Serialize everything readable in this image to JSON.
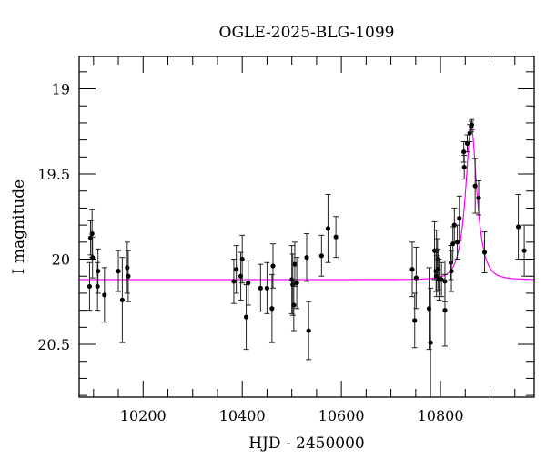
{
  "chart_data": {
    "type": "scatter",
    "title": "OGLE-2025-BLG-1099",
    "xlabel": "HJD - 2450000",
    "ylabel": "I magnitude",
    "xlim": [
      10071,
      10989
    ],
    "ylim": [
      20.81,
      18.81
    ],
    "y_inverted": true,
    "grid": false,
    "x_ticks": [
      10200,
      10400,
      10600,
      10800
    ],
    "x_tick_labels": [
      "10200",
      "10400",
      "10600",
      "10800"
    ],
    "y_ticks": [
      19,
      19.5,
      20,
      20.5
    ],
    "y_tick_labels": [
      "19",
      "19.5",
      "20",
      "20.5"
    ],
    "colors": {
      "points": "#000000",
      "model": "#ff00ff"
    },
    "model": {
      "type": "point-lens",
      "t0": 10862,
      "tE": 20,
      "u0": 0.47,
      "baseline": 20.12
    },
    "points": [
      {
        "x": 10097,
        "y": 19.85,
        "err": 0.14
      },
      {
        "x": 10094,
        "y": 19.875,
        "err": 0.1
      },
      {
        "x": 10098,
        "y": 19.99,
        "err": 0.12
      },
      {
        "x": 10092,
        "y": 20.16,
        "err": 0.14
      },
      {
        "x": 10108,
        "y": 20.16,
        "err": 0.14
      },
      {
        "x": 10109,
        "y": 20.07,
        "err": 0.13
      },
      {
        "x": 10122,
        "y": 20.21,
        "err": 0.16
      },
      {
        "x": 10150,
        "y": 20.07,
        "err": 0.12
      },
      {
        "x": 10158,
        "y": 20.24,
        "err": 0.25
      },
      {
        "x": 10168,
        "y": 20.05,
        "err": 0.15
      },
      {
        "x": 10170,
        "y": 20.1,
        "err": 0.15
      },
      {
        "x": 10383,
        "y": 20.13,
        "err": 0.13
      },
      {
        "x": 10388,
        "y": 20.06,
        "err": 0.14
      },
      {
        "x": 10397,
        "y": 20.1,
        "err": 0.14
      },
      {
        "x": 10400,
        "y": 20.0,
        "err": 0.14
      },
      {
        "x": 10408,
        "y": 20.34,
        "err": 0.19
      },
      {
        "x": 10412,
        "y": 20.14,
        "err": 0.13
      },
      {
        "x": 10437,
        "y": 20.17,
        "err": 0.14
      },
      {
        "x": 10450,
        "y": 20.17,
        "err": 0.15
      },
      {
        "x": 10460,
        "y": 20.29,
        "err": 0.2
      },
      {
        "x": 10462,
        "y": 20.04,
        "err": 0.13
      },
      {
        "x": 10500,
        "y": 20.12,
        "err": 0.2
      },
      {
        "x": 10502,
        "y": 20.15,
        "err": 0.18
      },
      {
        "x": 10504,
        "y": 20.27,
        "err": 0.15
      },
      {
        "x": 10506,
        "y": 20.03,
        "err": 0.13
      },
      {
        "x": 10510,
        "y": 20.14,
        "err": 0.15
      },
      {
        "x": 10530,
        "y": 19.99,
        "err": 0.14
      },
      {
        "x": 10534,
        "y": 20.42,
        "err": 0.17
      },
      {
        "x": 10560,
        "y": 19.98,
        "err": 0.12
      },
      {
        "x": 10573,
        "y": 19.82,
        "err": 0.2
      },
      {
        "x": 10589,
        "y": 19.87,
        "err": 0.12
      },
      {
        "x": 10743,
        "y": 20.06,
        "err": 0.16
      },
      {
        "x": 10748,
        "y": 20.36,
        "err": 0.16
      },
      {
        "x": 10751,
        "y": 20.11,
        "err": 0.18
      },
      {
        "x": 10777,
        "y": 20.29,
        "err": 0.24
      },
      {
        "x": 10780,
        "y": 20.49,
        "err": 0.32
      },
      {
        "x": 10788,
        "y": 19.95,
        "err": 0.17
      },
      {
        "x": 10792,
        "y": 19.95,
        "err": 0.12
      },
      {
        "x": 10794,
        "y": 20.0,
        "err": 0.12
      },
      {
        "x": 10791,
        "y": 20.07,
        "err": 0.12
      },
      {
        "x": 10792,
        "y": 20.1,
        "err": 0.12
      },
      {
        "x": 10795,
        "y": 20.06,
        "err": 0.12
      },
      {
        "x": 10797,
        "y": 20.12,
        "err": 0.12
      },
      {
        "x": 10802,
        "y": 20.12,
        "err": 0.1
      },
      {
        "x": 10809,
        "y": 20.13,
        "err": 0.12
      },
      {
        "x": 10809,
        "y": 20.3,
        "err": 0.21
      },
      {
        "x": 10821,
        "y": 20.02,
        "err": 0.1
      },
      {
        "x": 10822,
        "y": 20.07,
        "err": 0.12
      },
      {
        "x": 10825,
        "y": 19.91,
        "err": 0.1
      },
      {
        "x": 10828,
        "y": 19.8,
        "err": 0.1
      },
      {
        "x": 10834,
        "y": 19.9,
        "err": 0.1
      },
      {
        "x": 10838,
        "y": 19.76,
        "err": 0.13
      },
      {
        "x": 10847,
        "y": 19.37,
        "err": 0.06
      },
      {
        "x": 10848,
        "y": 19.46,
        "err": 0.07
      },
      {
        "x": 10854,
        "y": 19.32,
        "err": 0.05
      },
      {
        "x": 10859,
        "y": 19.26,
        "err": 0.05
      },
      {
        "x": 10862,
        "y": 19.22,
        "err": 0.03
      },
      {
        "x": 10863,
        "y": 19.21,
        "err": 0.03
      },
      {
        "x": 10870,
        "y": 19.57,
        "err": 0.16
      },
      {
        "x": 10877,
        "y": 19.64,
        "err": 0.1
      },
      {
        "x": 10889,
        "y": 19.96,
        "err": 0.12
      },
      {
        "x": 10957,
        "y": 19.81,
        "err": 0.19
      },
      {
        "x": 10969,
        "y": 19.95,
        "err": 0.15
      }
    ]
  }
}
